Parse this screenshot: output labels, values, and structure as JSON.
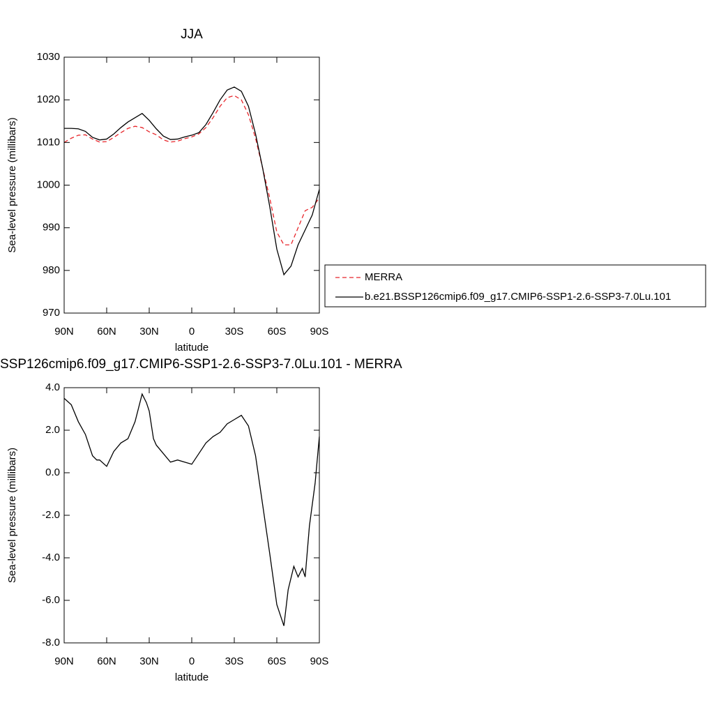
{
  "chart_data": [
    {
      "type": "line",
      "title": "JJA",
      "xlabel": "latitude",
      "ylabel": "Sea-level pressure (millibars)",
      "x": [
        90,
        85,
        80,
        75,
        70,
        65,
        60,
        55,
        50,
        45,
        40,
        35,
        30,
        25,
        20,
        15,
        10,
        5,
        0,
        -5,
        -10,
        -15,
        -20,
        -25,
        -30,
        -35,
        -40,
        -45,
        -50,
        -55,
        -60,
        -65,
        -70,
        -75,
        -80,
        -85,
        -90
      ],
      "series": [
        {
          "name": "MERRA",
          "color": "#e8262b",
          "linestyle": "dashed",
          "values": [
            1010,
            1011,
            1011.7,
            1011.8,
            1010.8,
            1010.1,
            1010.2,
            1011.2,
            1012.3,
            1013.3,
            1013.8,
            1013.5,
            1012.5,
            1011.8,
            1010.6,
            1010.1,
            1010.3,
            1010.9,
            1011.3,
            1012,
            1013.5,
            1015.8,
            1018.5,
            1020.5,
            1021,
            1020,
            1016.5,
            1011,
            1004,
            997,
            989,
            986,
            986,
            990,
            994,
            994.8,
            997
          ]
        },
        {
          "name": "b.e21.BSSP126cmip6.f09_g17.CMIP6-SSP1-2.6-SSP3-7.0Lu.101",
          "color": "#000000",
          "linestyle": "solid",
          "values": [
            1013.3,
            1013.3,
            1013.2,
            1012.6,
            1011.2,
            1010.6,
            1010.8,
            1012,
            1013.5,
            1014.8,
            1015.8,
            1016.8,
            1015.2,
            1013.2,
            1011.5,
            1010.7,
            1010.8,
            1011.3,
            1011.7,
            1012.3,
            1014.2,
            1017,
            1020,
            1022.3,
            1023,
            1022,
            1018.5,
            1012,
            1004,
            995,
            985,
            979,
            981,
            986,
            989.5,
            993,
            999
          ]
        }
      ],
      "xlim": [
        90,
        -90
      ],
      "xticks": [
        {
          "value": 90,
          "label": "90N"
        },
        {
          "value": 60,
          "label": "60N"
        },
        {
          "value": 30,
          "label": "30N"
        },
        0,
        {
          "value": -30,
          "label": "30S"
        },
        {
          "value": -60,
          "label": "60S"
        },
        {
          "value": -90,
          "label": "90S"
        }
      ],
      "ylim": [
        970,
        1030
      ],
      "yticks": [
        970,
        980,
        990,
        1000,
        1010,
        1020,
        1030
      ],
      "legend": "right"
    },
    {
      "type": "line",
      "title": "SSP126cmip6.f09_g17.CMIP6-SSP1-2.6-SSP3-7.0Lu.101 - MERRA",
      "xlabel": "latitude",
      "ylabel": "Sea-level pressure (millibars)",
      "x": [
        90,
        85,
        80,
        75,
        70,
        67,
        65,
        60,
        55,
        50,
        45,
        40,
        35,
        32,
        30,
        27,
        25,
        20,
        15,
        10,
        5,
        0,
        -5,
        -10,
        -15,
        -20,
        -25,
        -30,
        -35,
        -40,
        -45,
        -50,
        -55,
        -60,
        -65,
        -68,
        -72,
        -75,
        -78,
        -80,
        -83,
        -87,
        -90
      ],
      "series": [
        {
          "color": "#000000",
          "linestyle": "solid",
          "values": [
            3.5,
            3.2,
            2.4,
            1.8,
            0.8,
            0.6,
            0.6,
            0.3,
            1.0,
            1.4,
            1.6,
            2.4,
            3.7,
            3.3,
            2.9,
            1.6,
            1.3,
            0.9,
            0.5,
            0.6,
            0.5,
            0.4,
            0.9,
            1.4,
            1.7,
            1.9,
            2.3,
            2.5,
            2.7,
            2.2,
            0.8,
            -1.5,
            -3.8,
            -6.2,
            -7.2,
            -5.5,
            -4.4,
            -4.9,
            -4.5,
            -4.9,
            -2.5,
            -0.5,
            1.7
          ]
        }
      ],
      "xlim": [
        90,
        -90
      ],
      "xticks": [
        {
          "value": 90,
          "label": "90N"
        },
        {
          "value": 60,
          "label": "60N"
        },
        {
          "value": 30,
          "label": "30N"
        },
        0,
        {
          "value": -30,
          "label": "30S"
        },
        {
          "value": -60,
          "label": "60S"
        },
        {
          "value": -90,
          "label": "90S"
        }
      ],
      "ylim": [
        -8,
        4
      ],
      "yticks": [
        {
          "value": -8,
          "label": "-8.0"
        },
        {
          "value": -6,
          "label": "-6.0"
        },
        {
          "value": -4,
          "label": "-4.0"
        },
        {
          "value": -2,
          "label": "-2.0"
        },
        {
          "value": 0,
          "label": "0.0"
        },
        {
          "value": 2,
          "label": "2.0"
        },
        {
          "value": 4,
          "label": "4.0"
        }
      ]
    }
  ]
}
